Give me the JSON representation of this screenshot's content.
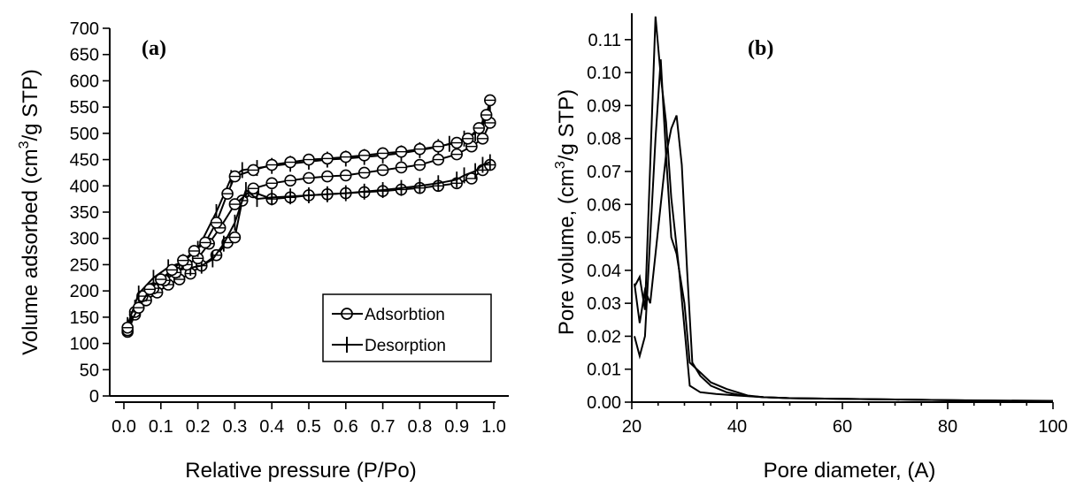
{
  "chart_data": [
    {
      "panel": "(a)",
      "type": "line",
      "xlabel": "Relative pressure (P/Po)",
      "ylabel": "Volume adsorbed (cm3/g STP)",
      "ylabel_parts": [
        "Volume adsorbed (cm",
        "3",
        "/g STP)"
      ],
      "xlim": [
        0.0,
        1.0
      ],
      "ylim": [
        0,
        700
      ],
      "xticks": [
        "0.0",
        "0.1",
        "0.2",
        "0.3",
        "0.4",
        "0.5",
        "0.6",
        "0.7",
        "0.8",
        "0.9",
        "1.0"
      ],
      "yticks": [
        "0",
        "50",
        "100",
        "150",
        "200",
        "250",
        "300",
        "350",
        "400",
        "450",
        "500",
        "550",
        "600",
        "650",
        "700"
      ],
      "legend_position": "lower-right",
      "series": [
        {
          "name": "Adsorbtion",
          "marker": "circle",
          "x": [
            0.01,
            0.03,
            0.06,
            0.09,
            0.12,
            0.15,
            0.18,
            0.21,
            0.25,
            0.28,
            0.3,
            0.32,
            0.35,
            0.4,
            0.45,
            0.5,
            0.55,
            0.6,
            0.65,
            0.7,
            0.75,
            0.8,
            0.85,
            0.9,
            0.94,
            0.97,
            0.99
          ],
          "y": [
            122,
            155,
            182,
            197,
            212,
            222,
            233,
            248,
            268,
            292,
            302,
            372,
            388,
            375,
            378,
            382,
            384,
            386,
            388,
            390,
            393,
            396,
            400,
            405,
            414,
            430,
            440
          ]
        },
        {
          "name": "Desorption",
          "marker": "plus",
          "x": [
            0.99,
            0.97,
            0.95,
            0.92,
            0.9,
            0.85,
            0.8,
            0.75,
            0.7,
            0.65,
            0.6,
            0.55,
            0.5,
            0.45,
            0.4,
            0.36,
            0.33,
            0.3,
            0.27,
            0.24,
            0.21,
            0.18,
            0.15,
            0.12,
            0.09,
            0.06,
            0.03,
            0.01
          ],
          "y": [
            445,
            440,
            428,
            420,
            412,
            405,
            400,
            396,
            392,
            389,
            386,
            384,
            382,
            380,
            378,
            375,
            392,
            330,
            290,
            260,
            248,
            244,
            240,
            230,
            215,
            195,
            168,
            130
          ]
        },
        {
          "name": "",
          "marker": "circle",
          "x": [
            0.01,
            0.03,
            0.05,
            0.08,
            0.11,
            0.14,
            0.17,
            0.2,
            0.23,
            0.26,
            0.3,
            0.35,
            0.4,
            0.45,
            0.5,
            0.55,
            0.6,
            0.65,
            0.7,
            0.75,
            0.8,
            0.85,
            0.9,
            0.94,
            0.97,
            0.99
          ],
          "y": [
            125,
            160,
            190,
            205,
            220,
            235,
            250,
            262,
            290,
            320,
            365,
            395,
            405,
            410,
            415,
            418,
            420,
            425,
            430,
            435,
            440,
            450,
            460,
            475,
            490,
            520
          ]
        },
        {
          "name": "",
          "marker": "plus",
          "x": [
            0.99,
            0.97,
            0.95,
            0.92,
            0.88,
            0.85,
            0.8,
            0.75,
            0.7,
            0.65,
            0.6,
            0.55,
            0.5,
            0.45,
            0.4,
            0.36,
            0.32,
            0.29,
            0.25,
            0.2,
            0.16,
            0.12,
            0.08,
            0.04,
            0.01
          ],
          "y": [
            555,
            515,
            500,
            490,
            480,
            474,
            468,
            462,
            458,
            455,
            452,
            450,
            446,
            442,
            438,
            434,
            430,
            415,
            350,
            280,
            255,
            245,
            225,
            195,
            135
          ]
        },
        {
          "name": "",
          "marker": "circle",
          "x": [
            0.01,
            0.04,
            0.07,
            0.1,
            0.13,
            0.16,
            0.19,
            0.22,
            0.25,
            0.28,
            0.3,
            0.35,
            0.4,
            0.45,
            0.5,
            0.55,
            0.6,
            0.65,
            0.7,
            0.75,
            0.8,
            0.85,
            0.9,
            0.93,
            0.96,
            0.98,
            0.99
          ],
          "y": [
            130,
            168,
            203,
            222,
            240,
            258,
            276,
            292,
            330,
            385,
            418,
            430,
            440,
            445,
            450,
            452,
            455,
            458,
            462,
            465,
            470,
            475,
            482,
            490,
            510,
            535,
            563
          ]
        }
      ]
    },
    {
      "panel": "(b)",
      "type": "line",
      "xlabel": "Pore diameter, (A)",
      "ylabel": "Pore volume, (cm3/g STP)",
      "ylabel_parts": [
        "Pore volume, (cm",
        "3",
        "/g STP)"
      ],
      "xlim": [
        20,
        100
      ],
      "ylim": [
        0,
        0.118
      ],
      "xticks": [
        "20",
        "40",
        "60",
        "80",
        "100"
      ],
      "yticks": [
        "0.00",
        "0.01",
        "0.02",
        "0.03",
        "0.04",
        "0.05",
        "0.06",
        "0.07",
        "0.08",
        "0.09",
        "0.10",
        "0.11"
      ],
      "series": [
        {
          "name": "",
          "marker": "none",
          "x": [
            20.5,
            21.5,
            22.5,
            23.5,
            24.5,
            25.5,
            26.5,
            27.5,
            29,
            31,
            33,
            36,
            40,
            45,
            50,
            60,
            70,
            80,
            90,
            100
          ],
          "y": [
            0.035,
            0.038,
            0.028,
            0.072,
            0.117,
            0.099,
            0.085,
            0.062,
            0.04,
            0.005,
            0.003,
            0.0025,
            0.002,
            0.0015,
            0.0012,
            0.001,
            0.0008,
            0.0006,
            0.0004,
            0.0003
          ]
        },
        {
          "name": "",
          "marker": "none",
          "x": [
            20.5,
            21.5,
            22.5,
            23.5,
            24.5,
            25.5,
            26.5,
            27.5,
            28.5,
            30,
            31,
            33,
            35,
            38,
            42,
            45,
            50,
            60,
            70,
            80,
            90,
            100
          ],
          "y": [
            0.02,
            0.014,
            0.02,
            0.05,
            0.08,
            0.104,
            0.075,
            0.05,
            0.045,
            0.03,
            0.012,
            0.009,
            0.006,
            0.004,
            0.002,
            0.0015,
            0.0012,
            0.001,
            0.0008,
            0.0006,
            0.0005,
            0.0004
          ]
        },
        {
          "name": "",
          "marker": "none",
          "x": [
            20.5,
            21.5,
            22.5,
            23.5,
            24.5,
            25.5,
            26.5,
            27.5,
            28.5,
            29.5,
            30.5,
            31.5,
            33,
            35,
            38,
            41,
            45,
            50,
            60,
            70,
            80,
            90,
            100
          ],
          "y": [
            0.036,
            0.024,
            0.034,
            0.03,
            0.045,
            0.06,
            0.075,
            0.083,
            0.087,
            0.072,
            0.04,
            0.012,
            0.008,
            0.005,
            0.003,
            0.002,
            0.0015,
            0.0012,
            0.001,
            0.0008,
            0.0006,
            0.0004,
            0.0003
          ]
        }
      ]
    }
  ]
}
